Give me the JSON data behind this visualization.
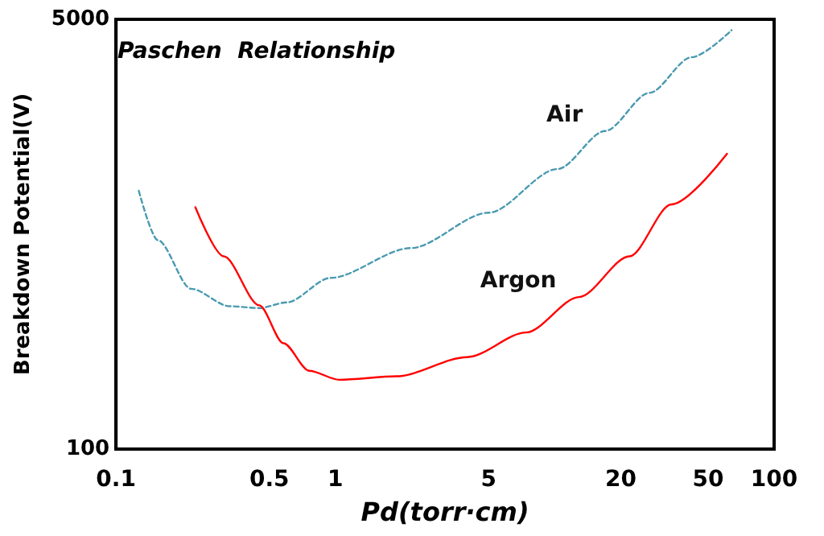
{
  "chart_data": {
    "type": "line",
    "title": "Paschen  Relationship",
    "xlabel": "Pd(torr·cm)",
    "ylabel": "Breakdown Potential(V)",
    "log": "xy",
    "xlim": [
      0.1,
      100
    ],
    "xticks": [
      0.1,
      0.5,
      1,
      5,
      20,
      50,
      100
    ],
    "ylim": [
      100,
      5000
    ],
    "yticks": [
      100,
      5000
    ],
    "grid": false,
    "legend": false,
    "marker": "none",
    "series": [
      {
        "name": "Air",
        "color": "#4a9ab0",
        "line_style": "dashed",
        "x": [
          0.127,
          0.155,
          0.22,
          0.33,
          0.45,
          0.6,
          0.95,
          2.2,
          5,
          10.3,
          17,
          27,
          42,
          64
        ],
        "values": [
          1050,
          670,
          430,
          367,
          361,
          380,
          475,
          623,
          860,
          1280,
          1810,
          2560,
          3540,
          4530
        ]
      },
      {
        "name": "Argon",
        "color": "#ff0000",
        "line_style": "solid",
        "x": [
          0.23,
          0.31,
          0.45,
          0.58,
          0.76,
          1.04,
          1.9,
          4.0,
          7.4,
          12.9,
          21.9,
          34,
          61
        ],
        "values": [
          904,
          578,
          370,
          262,
          204,
          188,
          194,
          231,
          289,
          399,
          578,
          927,
          1470
        ]
      }
    ]
  }
}
